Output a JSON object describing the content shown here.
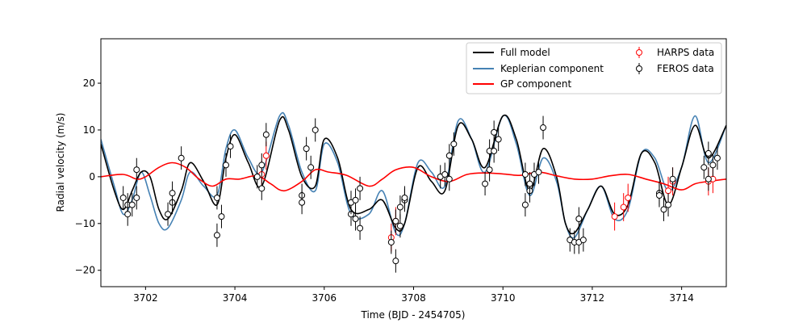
{
  "chart_data": {
    "type": "scatter",
    "title": "",
    "xlabel": "Time (BJD - 2454705)",
    "ylabel": "Radial velocity (m/s)",
    "xlim": [
      3701.0,
      3715.0
    ],
    "ylim": [
      -23.5,
      29.5
    ],
    "xticks": [
      3702,
      3704,
      3706,
      3708,
      3710,
      3712,
      3714
    ],
    "yticks": [
      -20,
      -10,
      0,
      10,
      20
    ],
    "grid": false,
    "legend_position": "top-right",
    "colors": {
      "full": "#000000",
      "keplerian": "#4682b4",
      "gp": "#ff0000",
      "harps": "#ff0000",
      "feros": "#000000"
    },
    "series": [
      {
        "name": "Full model",
        "kind": "line",
        "x": [
          3701.0,
          3701.3,
          3701.5,
          3701.7,
          3701.9,
          3702.1,
          3702.3,
          3702.5,
          3702.8,
          3703.0,
          3703.3,
          3703.6,
          3703.8,
          3704.0,
          3704.3,
          3704.6,
          3705.0,
          3705.2,
          3705.5,
          3705.8,
          3706.0,
          3706.3,
          3706.6,
          3707.0,
          3707.3,
          3707.6,
          3707.8,
          3708.1,
          3708.4,
          3708.7,
          3709.0,
          3709.3,
          3709.6,
          3710.0,
          3710.3,
          3710.6,
          3710.9,
          3711.2,
          3711.4,
          3711.6,
          3711.9,
          3712.2,
          3712.5,
          3712.8,
          3713.1,
          3713.4,
          3713.7,
          3714.0,
          3714.3,
          3714.6,
          3715.0
        ],
        "y": [
          7,
          -3,
          -7,
          -3,
          1,
          0,
          -7,
          -9,
          -3,
          3,
          -1,
          -6,
          4,
          9,
          3,
          -2,
          12,
          10,
          0,
          -2,
          8,
          4,
          -7,
          -7,
          -5,
          -11,
          -10,
          2,
          -1,
          -3,
          11,
          8,
          2,
          13,
          8,
          -3,
          6,
          0,
          -10,
          -12,
          -7,
          -2,
          -8,
          -6,
          5,
          3,
          -6,
          2,
          11,
          4,
          11
        ]
      },
      {
        "name": "Keplerian component",
        "kind": "line",
        "x": [
          3701.0,
          3701.3,
          3701.5,
          3701.7,
          3701.9,
          3702.1,
          3702.3,
          3702.5,
          3702.8,
          3703.0,
          3703.3,
          3703.6,
          3703.8,
          3704.0,
          3704.3,
          3704.6,
          3705.0,
          3705.2,
          3705.5,
          3705.8,
          3706.0,
          3706.3,
          3706.6,
          3707.0,
          3707.3,
          3707.6,
          3707.8,
          3708.1,
          3708.4,
          3708.7,
          3709.0,
          3709.3,
          3709.6,
          3710.0,
          3710.3,
          3710.6,
          3710.9,
          3711.2,
          3711.4,
          3711.6,
          3711.9,
          3712.2,
          3712.5,
          3712.8,
          3713.1,
          3713.4,
          3713.7,
          3714.0,
          3714.3,
          3714.6,
          3715.0
        ],
        "y": [
          8,
          -2,
          -8,
          -5,
          1,
          -4,
          -10,
          -11,
          -5,
          1,
          -2,
          -4,
          6,
          10,
          4,
          1,
          13,
          11,
          1,
          -3,
          7,
          3,
          -8,
          -8,
          -3,
          -12,
          -10,
          3,
          1,
          -2,
          12,
          8,
          1,
          13,
          7,
          -4,
          4,
          -1,
          -10,
          -13,
          -7,
          -2,
          -9,
          -7,
          5,
          4,
          -3,
          2,
          13,
          3,
          11
        ]
      },
      {
        "name": "GP component",
        "kind": "line",
        "x": [
          3701.0,
          3701.5,
          3701.8,
          3702.0,
          3702.3,
          3702.6,
          3702.9,
          3703.2,
          3703.5,
          3703.8,
          3704.1,
          3704.5,
          3704.8,
          3705.1,
          3705.5,
          3705.8,
          3706.1,
          3706.5,
          3707.0,
          3707.3,
          3707.6,
          3708.0,
          3708.4,
          3708.8,
          3709.2,
          3709.6,
          3710.0,
          3710.4,
          3710.8,
          3711.2,
          3711.6,
          3712.0,
          3712.4,
          3712.8,
          3713.2,
          3713.6,
          3714.0,
          3714.3,
          3714.6,
          3715.0
        ],
        "y": [
          0,
          0.5,
          -0.5,
          0,
          2,
          3,
          2,
          -0.5,
          -2,
          -0.5,
          -0.5,
          0.2,
          -1.5,
          -3,
          -1,
          1.5,
          1,
          0.3,
          -2,
          -0.5,
          1.5,
          2,
          0,
          -1,
          0.5,
          0.8,
          0.6,
          0.3,
          1,
          0.2,
          -0.5,
          -0.5,
          0.2,
          0.5,
          -0.5,
          -1.5,
          -2.8,
          -1.5,
          -1,
          -0.5
        ]
      },
      {
        "name": "HARPS data",
        "kind": "errorbar",
        "x": [
          3704.6,
          3704.7,
          3707.5,
          3707.6,
          3712.5,
          3712.7,
          3712.8,
          3713.7,
          3713.8,
          3714.6,
          3714.7
        ],
        "y": [
          0.5,
          4.5,
          -13,
          -9.5,
          -8.5,
          -6.5,
          -4.5,
          -3,
          -1,
          -1,
          -0.5
        ],
        "err": [
          3,
          3,
          3,
          3,
          3,
          3,
          3,
          3,
          3,
          3,
          3
        ]
      },
      {
        "name": "FEROS data",
        "kind": "errorbar",
        "x": [
          3701.5,
          3701.6,
          3701.6,
          3701.7,
          3701.8,
          3701.8,
          3702.5,
          3702.6,
          3702.6,
          3702.8,
          3703.6,
          3703.6,
          3703.7,
          3703.8,
          3703.9,
          3704.5,
          3704.6,
          3704.6,
          3704.7,
          3705.5,
          3705.5,
          3705.6,
          3705.7,
          3705.8,
          3706.6,
          3706.6,
          3706.7,
          3706.7,
          3706.8,
          3706.8,
          3707.5,
          3707.6,
          3707.6,
          3707.7,
          3707.7,
          3707.8,
          3707.8,
          3708.6,
          3708.7,
          3708.8,
          3708.8,
          3708.9,
          3709.6,
          3709.7,
          3709.7,
          3709.8,
          3709.8,
          3709.9,
          3710.5,
          3710.5,
          3710.6,
          3710.6,
          3710.7,
          3710.8,
          3710.9,
          3711.5,
          3711.6,
          3711.7,
          3711.7,
          3711.8,
          3713.5,
          3713.5,
          3713.6,
          3713.7,
          3713.8,
          3714.5,
          3714.6,
          3714.6,
          3714.7,
          3714.8
        ],
        "y": [
          -4.5,
          -6,
          -8,
          -6,
          -4.5,
          1.5,
          -8,
          -5.5,
          -3.5,
          4,
          -4.5,
          -12.5,
          -8.5,
          2.5,
          6.5,
          0,
          2.5,
          -2.5,
          9,
          -4,
          -5.5,
          6,
          2,
          10,
          -8,
          -5.5,
          -9,
          -5,
          -11,
          -2.5,
          -14,
          -18,
          -9.5,
          -6.5,
          -10.5,
          -5,
          -4.5,
          0,
          0.5,
          4.5,
          -0.5,
          7,
          -1.5,
          1.5,
          5.5,
          5.5,
          9.5,
          8,
          0.5,
          -6,
          -3,
          -1.5,
          0.5,
          1,
          10.5,
          -13.5,
          -14,
          -9,
          -14,
          -13.5,
          -3.5,
          -4,
          -7,
          -6,
          -0.5,
          2,
          5,
          -0.5,
          2.5,
          4
        ],
        "err": [
          2.5,
          2.5,
          2.5,
          2.5,
          2.5,
          2.5,
          2.5,
          2.5,
          2.5,
          2.5,
          2.5,
          2.5,
          2.5,
          2.5,
          2.5,
          2.5,
          2.5,
          2.5,
          2.5,
          2.5,
          2.5,
          2.5,
          2.5,
          2.5,
          2.5,
          2.5,
          2.5,
          2.5,
          2.5,
          2.5,
          2.5,
          2.5,
          2.5,
          2.5,
          2.5,
          2.5,
          2.5,
          2.5,
          2.5,
          2.5,
          2.5,
          2.5,
          2.5,
          2.5,
          2.5,
          2.5,
          2.5,
          2.5,
          2.5,
          2.5,
          2.5,
          2.5,
          2.5,
          2.5,
          2.5,
          2.5,
          2.5,
          2.5,
          2.5,
          2.5,
          2.5,
          2.5,
          2.5,
          2.5,
          2.5,
          2.5,
          2.5,
          2.5,
          2.5,
          2.5
        ]
      }
    ]
  }
}
